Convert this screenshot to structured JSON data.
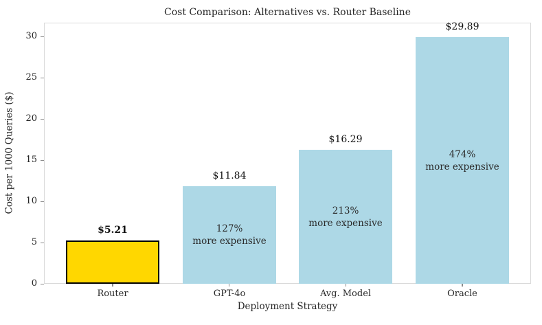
{
  "chart_data": {
    "type": "bar",
    "title": "Cost Comparison: Alternatives vs. Router Baseline",
    "xlabel": "Deployment Strategy",
    "ylabel": "Cost per 1000 Queries ($)",
    "categories": [
      "Router",
      "GPT-4o",
      "Avg. Model",
      "Oracle"
    ],
    "values": [
      5.21,
      11.84,
      16.29,
      29.89
    ],
    "value_labels": [
      "$5.21",
      "$11.84",
      "$16.29",
      "$29.89"
    ],
    "value_label_bold": [
      true,
      false,
      false,
      false
    ],
    "annotations": [
      "",
      "127%\nmore expensive",
      "213%\nmore expensive",
      "474%\nmore expensive"
    ],
    "bar_colors": [
      "#FFD700",
      "#ADD8E6",
      "#ADD8E6",
      "#ADD8E6"
    ],
    "bar_edge_colors": [
      "#000000",
      "",
      "",
      ""
    ],
    "y_ticks": [
      0,
      5,
      10,
      15,
      20,
      25,
      30
    ],
    "ylim": [
      0,
      31.67
    ],
    "grid": false,
    "legend": null
  },
  "colors": {
    "router_bar": "#FFD700",
    "alternative_bar": "#ADD8E6",
    "router_bar_edge": "#000000",
    "spine": "#d9d9d9",
    "text": "#262626",
    "tick": "#8a8a8a"
  }
}
